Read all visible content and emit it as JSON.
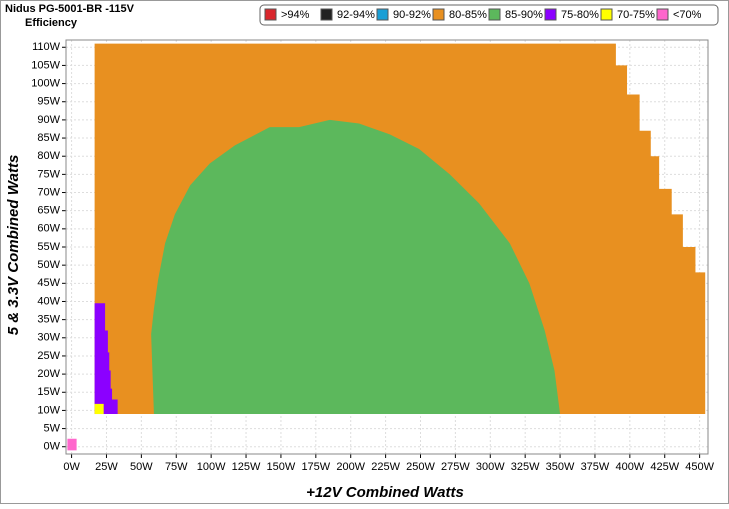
{
  "chart_data": {
    "type": "region",
    "title": "Nidus PG-5001-BR -115V",
    "subtitle": "Efficiency",
    "x_label": "+12V Combined Watts",
    "y_label": "5 & 3.3V Combined Watts",
    "xlim": [
      -4,
      456
    ],
    "ylim": [
      -2,
      112
    ],
    "xticks": [
      {
        "value": 0,
        "label": "0W"
      },
      {
        "value": 25,
        "label": "25W"
      },
      {
        "value": 50,
        "label": "50W"
      },
      {
        "value": 75,
        "label": "75W"
      },
      {
        "value": 100,
        "label": "100W"
      },
      {
        "value": 125,
        "label": "125W"
      },
      {
        "value": 150,
        "label": "150W"
      },
      {
        "value": 175,
        "label": "175W"
      },
      {
        "value": 200,
        "label": "200W"
      },
      {
        "value": 225,
        "label": "225W"
      },
      {
        "value": 250,
        "label": "250W"
      },
      {
        "value": 275,
        "label": "275W"
      },
      {
        "value": 300,
        "label": "300W"
      },
      {
        "value": 325,
        "label": "325W"
      },
      {
        "value": 350,
        "label": "350W"
      },
      {
        "value": 375,
        "label": "375W"
      },
      {
        "value": 400,
        "label": "400W"
      },
      {
        "value": 425,
        "label": "425W"
      },
      {
        "value": 450,
        "label": "450W"
      }
    ],
    "yticks": [
      {
        "value": 0,
        "label": "0W"
      },
      {
        "value": 5,
        "label": "5W"
      },
      {
        "value": 10,
        "label": "10W"
      },
      {
        "value": 15,
        "label": "15W"
      },
      {
        "value": 20,
        "label": "20W"
      },
      {
        "value": 25,
        "label": "25W"
      },
      {
        "value": 30,
        "label": "30W"
      },
      {
        "value": 35,
        "label": "35W"
      },
      {
        "value": 40,
        "label": "40W"
      },
      {
        "value": 45,
        "label": "45W"
      },
      {
        "value": 50,
        "label": "50W"
      },
      {
        "value": 55,
        "label": "55W"
      },
      {
        "value": 60,
        "label": "60W"
      },
      {
        "value": 65,
        "label": "65W"
      },
      {
        "value": 70,
        "label": "70W"
      },
      {
        "value": 75,
        "label": "75W"
      },
      {
        "value": 80,
        "label": "80W"
      },
      {
        "value": 85,
        "label": "85W"
      },
      {
        "value": 90,
        "label": "90W"
      },
      {
        "value": 95,
        "label": "95W"
      },
      {
        "value": 100,
        "label": "100W"
      },
      {
        "value": 105,
        "label": "105W"
      },
      {
        "value": 110,
        "label": "110W"
      }
    ],
    "grid": true,
    "series": [
      {
        "name": ">94%",
        "color": "#d9262c",
        "x": [],
        "y": []
      },
      {
        "name": "92-94%",
        "color": "#222222",
        "x": [],
        "y": []
      },
      {
        "name": "90-92%",
        "color": "#1a9fd6",
        "x": [],
        "y": []
      },
      {
        "name": "80-85%",
        "color": "#e89020",
        "x": [
          16.5,
          16.5,
          390,
          390,
          398,
          398,
          407,
          407,
          415,
          415,
          421,
          421,
          430,
          430,
          438,
          438,
          447,
          447,
          454,
          454
        ],
        "y": [
          9,
          111,
          111,
          105,
          105,
          97,
          97,
          87,
          87,
          80,
          80,
          71,
          71,
          64,
          64,
          55,
          55,
          48,
          48,
          9
        ]
      },
      {
        "name": "85-90%",
        "color": "#5cb85c",
        "x": [
          59,
          57,
          59,
          62,
          67,
          74,
          85,
          99,
          117,
          142,
          163,
          185,
          206,
          228,
          249,
          271,
          292,
          314,
          328,
          339,
          346,
          350
        ],
        "y": [
          9,
          31,
          38,
          46,
          56,
          64,
          72,
          78,
          83,
          88,
          88,
          90,
          89,
          86,
          82,
          75,
          67,
          56,
          45,
          32,
          21,
          9
        ]
      },
      {
        "name": "75-80%",
        "color": "#8b00ff",
        "x": [
          16.5,
          16.5,
          24,
          24,
          26,
          26,
          27,
          27,
          28,
          28,
          29,
          29,
          33,
          33
        ],
        "y": [
          9,
          39.5,
          39.5,
          32,
          32,
          26,
          26,
          21,
          21,
          16,
          16,
          13,
          13,
          9
        ]
      },
      {
        "name": "70-75%",
        "color": "#ffff00",
        "x": [
          16.5,
          16.5,
          23,
          23
        ],
        "y": [
          9,
          11.8,
          11.8,
          9
        ]
      },
      {
        "name": "<70%",
        "color": "#ff66cc",
        "x": [
          -3,
          -3,
          3.6,
          3.6
        ],
        "y": [
          -1,
          2.2,
          2.2,
          -1
        ]
      }
    ]
  }
}
